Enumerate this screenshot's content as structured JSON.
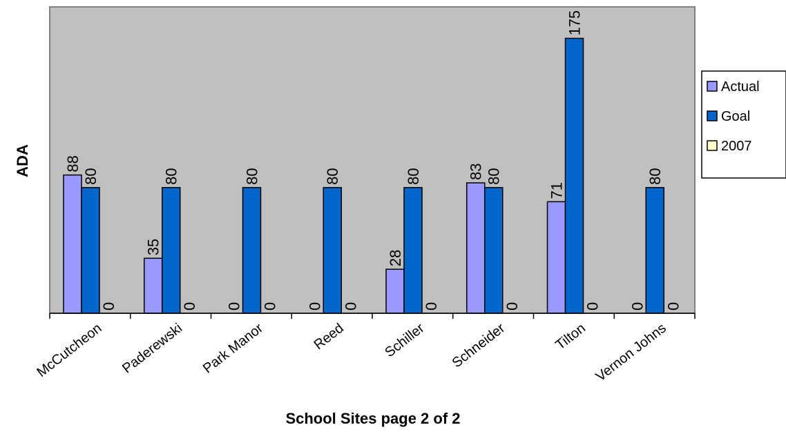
{
  "chart_data": {
    "type": "bar",
    "title": "",
    "xlabel": "School Sites page 2 of 2",
    "ylabel": "ADA",
    "categories": [
      "McCutcheon",
      "Paderewski",
      "Park Manor",
      "Reed",
      "Schiller",
      "Schneider",
      "Tilton",
      "Vernon Johns"
    ],
    "series": [
      {
        "name": "Actual",
        "values": [
          88,
          35,
          0,
          0,
          28,
          83,
          71,
          0
        ],
        "color": "#9999ff"
      },
      {
        "name": "Goal",
        "values": [
          80,
          80,
          80,
          80,
          80,
          80,
          175,
          80
        ],
        "color": "#0066cc"
      },
      {
        "name": "2007",
        "values": [
          0,
          0,
          0,
          0,
          0,
          0,
          0,
          0
        ],
        "color": "#ffffcc"
      }
    ],
    "ylim": [
      0,
      195
    ],
    "grid": false,
    "legend_position": "right",
    "plot_background": "#c0c0c0"
  }
}
